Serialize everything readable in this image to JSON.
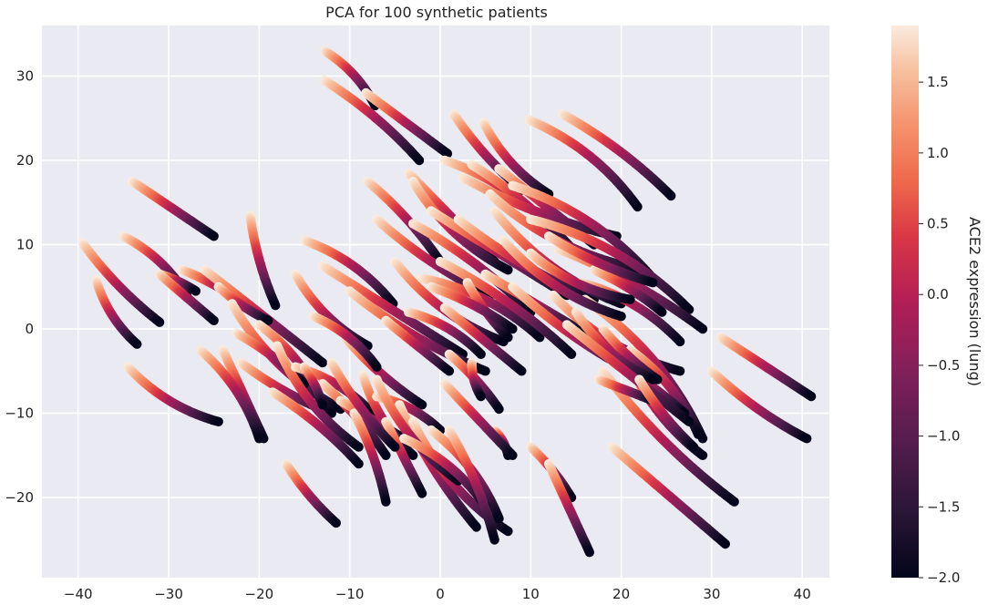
{
  "chart_data": {
    "type": "scatter",
    "title": "PCA for 100 synthetic patients",
    "xlabel": "",
    "ylabel": "",
    "xlim": [
      -44,
      43
    ],
    "ylim": [
      -29.5,
      36
    ],
    "x_ticks": [
      -40,
      -30,
      -20,
      -10,
      0,
      10,
      20,
      30,
      40
    ],
    "y_ticks": [
      -20,
      -10,
      0,
      10,
      20,
      30
    ],
    "grid": true,
    "background": "#eaeaf2",
    "colormap": "rocket",
    "colorbar": {
      "label": "ACE2 expression (lung)",
      "range": [
        -2.0,
        1.9
      ],
      "ticks": [
        -2.0,
        -1.5,
        -1.0,
        -0.5,
        0.0,
        0.5,
        1.0,
        1.5
      ],
      "tick_labels": [
        "−2.0",
        "−1.5",
        "−1.0",
        "−0.5",
        "0.0",
        "0.5",
        "1.0",
        "1.5"
      ]
    },
    "trajectories": [
      {
        "x0": -12.8,
        "y0": 33.0,
        "x1": -7.2,
        "y1": 26.5
      },
      {
        "x0": -12.8,
        "y0": 29.5,
        "x1": -2.3,
        "y1": 20.0
      },
      {
        "x0": -8.2,
        "y0": 28.0,
        "x1": 0.8,
        "y1": 20.8
      },
      {
        "x0": 1.5,
        "y0": 25.5,
        "x1": 9.0,
        "y1": 16.5
      },
      {
        "x0": 4.8,
        "y0": 24.5,
        "x1": 12.0,
        "y1": 16.0
      },
      {
        "x0": 9.8,
        "y0": 24.8,
        "x1": 21.8,
        "y1": 14.5
      },
      {
        "x0": 13.5,
        "y0": 25.5,
        "x1": 25.5,
        "y1": 15.8
      },
      {
        "x0": -34.0,
        "y0": 17.5,
        "x1": -25.0,
        "y1": 11.0
      },
      {
        "x0": -39.5,
        "y0": 10.2,
        "x1": -31.0,
        "y1": 0.8
      },
      {
        "x0": -38.0,
        "y0": 5.8,
        "x1": -33.5,
        "y1": -1.8
      },
      {
        "x0": -35.0,
        "y0": 11.0,
        "x1": -28.0,
        "y1": 4.0
      },
      {
        "x0": -31.0,
        "y0": 6.5,
        "x1": -27.0,
        "y1": 4.5
      },
      {
        "x0": -31.0,
        "y0": 6.5,
        "x1": -25.0,
        "y1": 1.0
      },
      {
        "x0": -21.0,
        "y0": 13.5,
        "x1": -18.2,
        "y1": 2.8
      },
      {
        "x0": -16.0,
        "y0": 6.5,
        "x1": -8.0,
        "y1": -2.0
      },
      {
        "x0": -15.0,
        "y0": 10.5,
        "x1": -5.2,
        "y1": 3.0
      },
      {
        "x0": -8.0,
        "y0": 17.5,
        "x1": 0.0,
        "y1": 8.0
      },
      {
        "x0": -3.5,
        "y0": 18.5,
        "x1": 6.0,
        "y1": 8.0
      },
      {
        "x0": -7.0,
        "y0": 13.0,
        "x1": 5.5,
        "y1": 4.0
      },
      {
        "x0": -3.0,
        "y0": 17.5,
        "x1": 7.5,
        "y1": 7.0
      },
      {
        "x0": 0.5,
        "y0": 20.0,
        "x1": 13.5,
        "y1": 10.5
      },
      {
        "x0": 3.5,
        "y0": 19.5,
        "x1": 15.0,
        "y1": 9.0
      },
      {
        "x0": 6.5,
        "y0": 19.0,
        "x1": 17.0,
        "y1": 10.0
      },
      {
        "x0": 2.5,
        "y0": 18.0,
        "x1": 19.5,
        "y1": 11.0
      },
      {
        "x0": 5.5,
        "y0": 16.0,
        "x1": 22.5,
        "y1": 7.0
      },
      {
        "x0": 8.0,
        "y0": 17.0,
        "x1": 23.5,
        "y1": 6.0
      },
      {
        "x0": -3.0,
        "y0": 12.5,
        "x1": 10.0,
        "y1": 2.0
      },
      {
        "x0": -1.0,
        "y0": 14.0,
        "x1": 14.0,
        "y1": 4.0
      },
      {
        "x0": 2.0,
        "y0": 13.0,
        "x1": 17.0,
        "y1": 3.5
      },
      {
        "x0": 6.0,
        "y0": 14.0,
        "x1": 20.0,
        "y1": 3.0
      },
      {
        "x0": 10.0,
        "y0": 13.0,
        "x1": 27.5,
        "y1": 2.3
      },
      {
        "x0": 13.0,
        "y0": 9.5,
        "x1": 29.0,
        "y1": 0.0
      },
      {
        "x0": -13.0,
        "y0": 7.5,
        "x1": 2.5,
        "y1": -3.0
      },
      {
        "x0": -10.0,
        "y0": 4.5,
        "x1": 5.0,
        "y1": -5.0
      },
      {
        "x0": -5.0,
        "y0": 8.0,
        "x1": 7.0,
        "y1": -1.5
      },
      {
        "x0": -2.0,
        "y0": 6.0,
        "x1": 11.0,
        "y1": -1.0
      },
      {
        "x0": 0.0,
        "y0": 8.0,
        "x1": 14.5,
        "y1": -3.0
      },
      {
        "x0": 5.0,
        "y0": 6.5,
        "x1": 16.0,
        "y1": -0.5
      },
      {
        "x0": 8.0,
        "y0": 5.0,
        "x1": 22.5,
        "y1": -5.8
      },
      {
        "x0": 12.5,
        "y0": 4.0,
        "x1": 26.5,
        "y1": -5.0
      },
      {
        "x0": 16.0,
        "y0": 3.5,
        "x1": 29.0,
        "y1": -13.0
      },
      {
        "x0": -28.5,
        "y0": 7.0,
        "x1": -21.0,
        "y1": 2.5
      },
      {
        "x0": -26.0,
        "y0": 7.0,
        "x1": -13.0,
        "y1": -4.0
      },
      {
        "x0": -24.5,
        "y0": 5.0,
        "x1": -19.0,
        "y1": 1.0
      },
      {
        "x0": -23.0,
        "y0": 3.0,
        "x1": -11.0,
        "y1": -9.5
      },
      {
        "x0": -20.0,
        "y0": 0.5,
        "x1": -13.0,
        "y1": -9.0
      },
      {
        "x0": -22.5,
        "y0": -0.5,
        "x1": -15.0,
        "y1": -6.5
      },
      {
        "x0": -24.0,
        "y0": -2.5,
        "x1": -19.5,
        "y1": -13.0
      },
      {
        "x0": -22.0,
        "y0": -4.0,
        "x1": -12.0,
        "y1": -10.0
      },
      {
        "x0": -18.0,
        "y0": -2.0,
        "x1": -9.0,
        "y1": -14.0
      },
      {
        "x0": -16.0,
        "y0": -4.5,
        "x1": -7.5,
        "y1": -10.0
      },
      {
        "x0": -13.0,
        "y0": -6.5,
        "x1": -6.0,
        "y1": -15.0
      },
      {
        "x0": -11.0,
        "y0": -8.5,
        "x1": -4.0,
        "y1": -13.0
      },
      {
        "x0": -10.5,
        "y0": -1.0,
        "x1": -2.0,
        "y1": -9.0
      },
      {
        "x0": -8.5,
        "y0": -5.5,
        "x1": -3.0,
        "y1": -15.0
      },
      {
        "x0": -7.0,
        "y0": -8.0,
        "x1": 0.0,
        "y1": -12.0
      },
      {
        "x0": -9.5,
        "y0": -10.0,
        "x1": -6.0,
        "y1": -20.5
      },
      {
        "x0": -6.0,
        "y0": -11.0,
        "x1": -2.0,
        "y1": -19.5
      },
      {
        "x0": -4.5,
        "y0": -9.0,
        "x1": 4.0,
        "y1": -23.5
      },
      {
        "x0": -3.0,
        "y0": -11.0,
        "x1": 7.5,
        "y1": -24.0
      },
      {
        "x0": -1.0,
        "y0": -12.0,
        "x1": 6.5,
        "y1": -22.5
      },
      {
        "x0": 1.0,
        "y0": -3.0,
        "x1": 6.5,
        "y1": -9.5
      },
      {
        "x0": 0.5,
        "y0": 2.5,
        "x1": 9.0,
        "y1": -5.0
      },
      {
        "x0": 3.0,
        "y0": 5.5,
        "x1": 7.5,
        "y1": -1.0
      },
      {
        "x0": 3.5,
        "y0": -4.0,
        "x1": 4.5,
        "y1": -8.0
      },
      {
        "x0": 6.0,
        "y0": -12.0,
        "x1": 7.5,
        "y1": -15.0
      },
      {
        "x0": 10.0,
        "y0": -14.0,
        "x1": 14.5,
        "y1": -20.0
      },
      {
        "x0": 12.0,
        "y0": -16.0,
        "x1": 16.5,
        "y1": -26.5
      },
      {
        "x0": -17.0,
        "y0": -16.0,
        "x1": -11.5,
        "y1": -23.0
      },
      {
        "x0": -34.5,
        "y0": -4.5,
        "x1": -24.5,
        "y1": -11.0
      },
      {
        "x0": -26.5,
        "y0": -2.5,
        "x1": -20.0,
        "y1": -13.0
      },
      {
        "x0": -15.0,
        "y0": -4.5,
        "x1": -13.0,
        "y1": -9.0
      },
      {
        "x0": 19.0,
        "y0": -14.0,
        "x1": 31.5,
        "y1": -25.5
      },
      {
        "x0": 18.0,
        "y0": -5.0,
        "x1": 32.5,
        "y1": -20.5
      },
      {
        "x0": 20.5,
        "y0": -3.0,
        "x1": 29.0,
        "y1": -15.0
      },
      {
        "x0": 21.0,
        "y0": -2.5,
        "x1": 28.5,
        "y1": -12.5
      },
      {
        "x0": 19.0,
        "y0": -4.0,
        "x1": 27.0,
        "y1": -10.0
      },
      {
        "x0": 17.5,
        "y0": -6.0,
        "x1": 23.5,
        "y1": -8.5
      },
      {
        "x0": 18.0,
        "y0": 0.0,
        "x1": 24.0,
        "y1": -6.0
      },
      {
        "x0": 15.0,
        "y0": 2.0,
        "x1": 23.5,
        "y1": -6.0
      },
      {
        "x0": 15.5,
        "y0": 5.5,
        "x1": 26.5,
        "y1": -1.5
      },
      {
        "x0": 17.0,
        "y0": 7.0,
        "x1": 24.5,
        "y1": 2.0
      },
      {
        "x0": 31.0,
        "y0": -1.0,
        "x1": 41.0,
        "y1": -8.0
      },
      {
        "x0": 30.0,
        "y0": -5.0,
        "x1": 40.5,
        "y1": -13.0
      },
      {
        "x0": 10.0,
        "y0": 9.0,
        "x1": 21.0,
        "y1": 3.5
      },
      {
        "x0": -3.5,
        "y0": 2.0,
        "x1": 4.5,
        "y1": -3.0
      },
      {
        "x0": -1.0,
        "y0": 5.0,
        "x1": 8.0,
        "y1": 0.0
      },
      {
        "x0": -6.0,
        "y0": 1.0,
        "x1": 1.0,
        "y1": -5.0
      },
      {
        "x0": -12.0,
        "y0": -4.0,
        "x1": -5.0,
        "y1": -14.0
      },
      {
        "x0": -7.0,
        "y0": -6.0,
        "x1": 2.0,
        "y1": -18.0
      },
      {
        "x0": -4.0,
        "y0": -13.0,
        "x1": 5.0,
        "y1": -21.0
      },
      {
        "x0": 1.0,
        "y0": -12.0,
        "x1": 6.0,
        "y1": -25.0
      },
      {
        "x0": 0.5,
        "y0": -6.5,
        "x1": 8.0,
        "y1": -15.0
      },
      {
        "x0": 12.0,
        "y0": 11.0,
        "x1": 23.5,
        "y1": 5.5
      },
      {
        "x0": 7.0,
        "y0": 10.5,
        "x1": 20.0,
        "y1": 1.5
      },
      {
        "x0": -14.0,
        "y0": 1.5,
        "x1": -7.0,
        "y1": -4.5
      },
      {
        "x0": -18.5,
        "y0": -7.5,
        "x1": -9.0,
        "y1": -16.0
      },
      {
        "x0": 14.0,
        "y0": 0.5,
        "x1": 27.5,
        "y1": -11.0
      },
      {
        "x0": 22.0,
        "y0": -6.0,
        "x1": 28.0,
        "y1": -14.0
      }
    ]
  }
}
